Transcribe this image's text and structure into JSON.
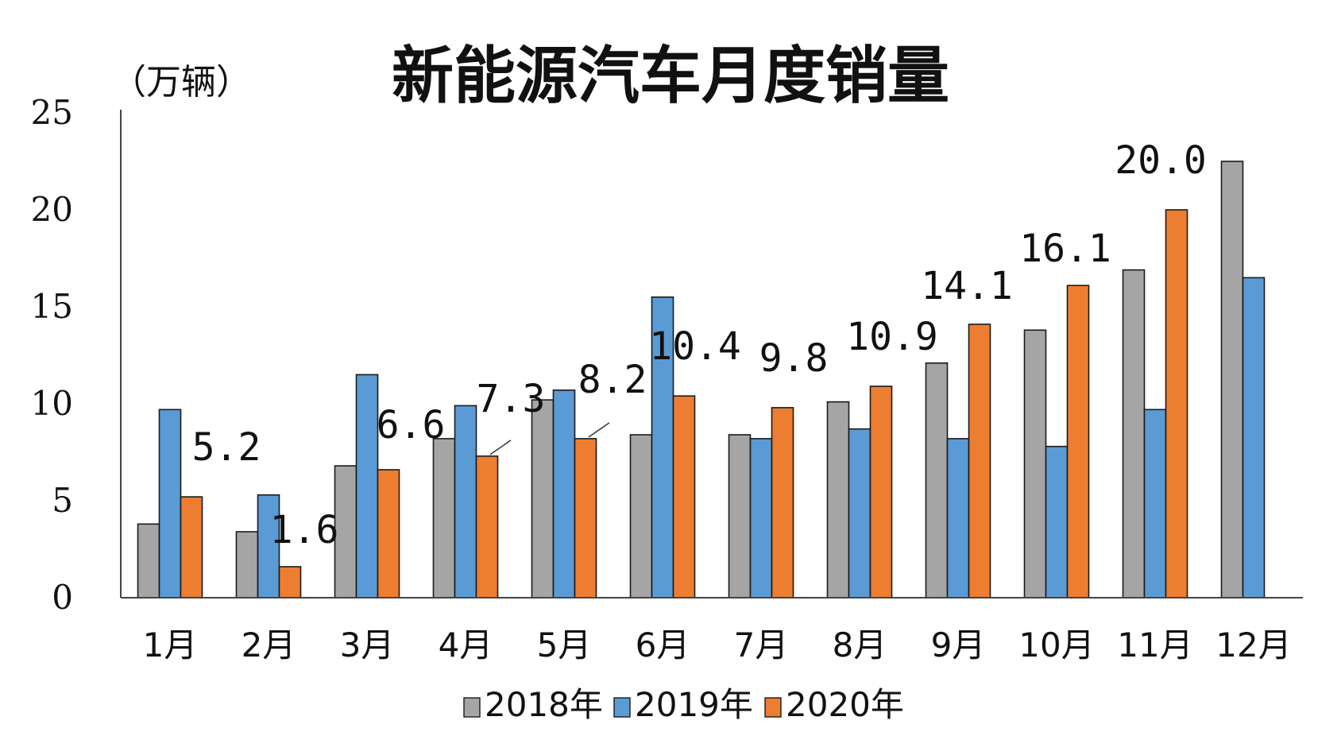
{
  "chart_data": {
    "type": "bar",
    "title": "新能源汽车月度销量",
    "ylabel": "（万辆）",
    "xlabel": "",
    "ylim": [
      0,
      25
    ],
    "yticks": [
      0,
      5,
      10,
      15,
      20,
      25
    ],
    "categories": [
      "1月",
      "2月",
      "3月",
      "4月",
      "5月",
      "6月",
      "7月",
      "8月",
      "9月",
      "10月",
      "11月",
      "12月"
    ],
    "series": [
      {
        "name": "2018年",
        "color": "#a5a5a5",
        "values": [
          3.8,
          3.4,
          6.8,
          8.2,
          10.2,
          8.4,
          8.4,
          10.1,
          12.1,
          13.8,
          16.9,
          22.5
        ]
      },
      {
        "name": "2019年",
        "color": "#5b9bd5",
        "values": [
          9.7,
          5.3,
          11.5,
          9.9,
          10.7,
          15.5,
          8.2,
          8.7,
          8.2,
          7.8,
          9.7,
          16.5
        ]
      },
      {
        "name": "2020年",
        "color": "#ed7d31",
        "values": [
          5.2,
          1.6,
          6.6,
          7.3,
          8.2,
          10.4,
          9.8,
          10.9,
          14.1,
          16.1,
          20.0,
          null
        ]
      }
    ],
    "data_labels": [
      "5.2",
      "1.6",
      "6.6",
      "7.3",
      "8.2",
      "10.4",
      "9.8",
      "10.9",
      "14.1",
      "16.1",
      "20.0"
    ],
    "legend_position": "bottom-center",
    "grid": false
  }
}
